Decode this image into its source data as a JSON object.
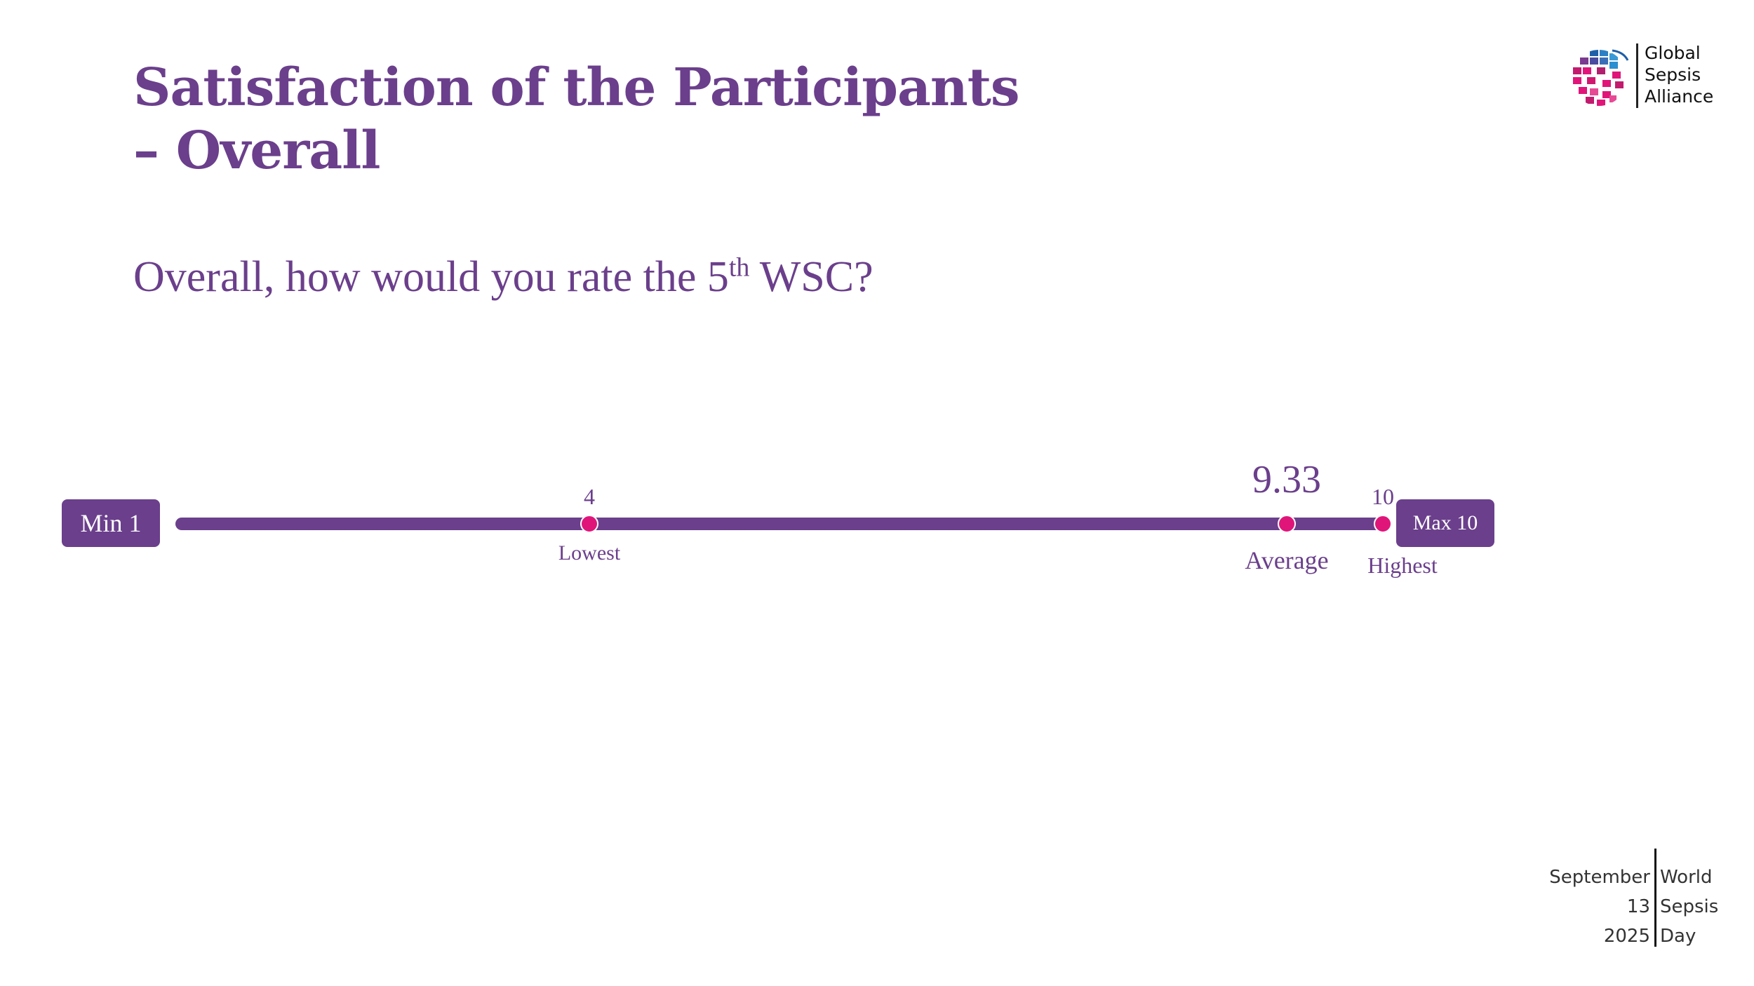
{
  "slide": {
    "title": "Satisfaction of the Participants – Overall",
    "question_prefix": "Overall, how would you rate the 5",
    "question_sup": "th",
    "question_suffix": " WSC?"
  },
  "logo": {
    "line1": "Global",
    "line2": "Sepsis",
    "line3": "Alliance",
    "icon": "globe-icon"
  },
  "footer": {
    "left": [
      "September",
      "13",
      "2025"
    ],
    "right": [
      "World",
      "Sepsis",
      "Day"
    ]
  },
  "colors": {
    "primary": "#6b3f8c",
    "accent": "#e0157a"
  },
  "chart_data": {
    "type": "range-scale",
    "title": "Overall, how would you rate the 5th WSC?",
    "min_label": "Min 1",
    "max_label": "Max 10",
    "scale_min": 1,
    "scale_max": 10,
    "markers": [
      {
        "key": "lowest",
        "value": 4,
        "value_label": "4",
        "label": "Lowest"
      },
      {
        "key": "average",
        "value": 9.33,
        "value_label": "9.33",
        "label": "Average"
      },
      {
        "key": "highest",
        "value": 10,
        "value_label": "10",
        "label": "Highest"
      }
    ]
  }
}
